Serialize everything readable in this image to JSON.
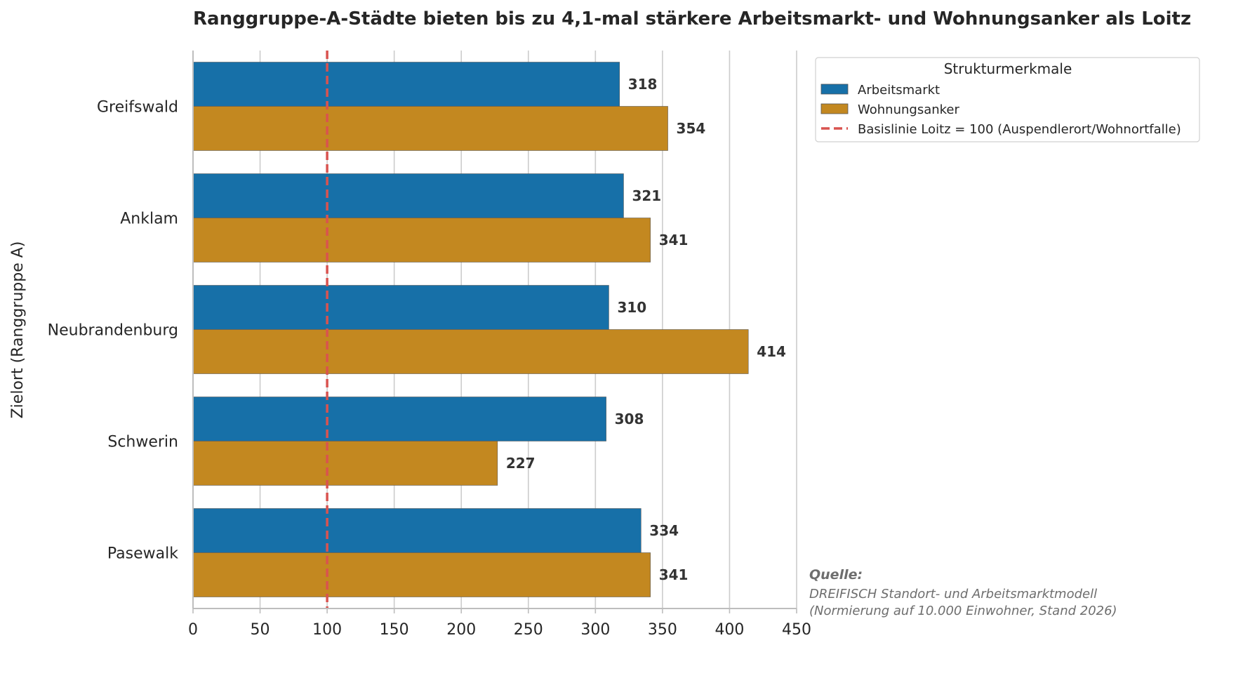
{
  "chart_data": {
    "type": "bar",
    "orientation": "horizontal",
    "title": "Ranggruppe-A-Städte bieten bis zu 4,1-mal stärkere Arbeitsmarkt- und Wohnungsanker als Loitz",
    "ylabel": "Zielort (Ranggruppe A)",
    "xlabel": "",
    "categories": [
      "Greifswald",
      "Anklam",
      "Neubrandenburg",
      "Schwerin",
      "Pasewalk"
    ],
    "series": [
      {
        "name": "Arbeitsmarkt",
        "color": "#1770a8",
        "values": [
          318,
          321,
          310,
          308,
          334
        ]
      },
      {
        "name": "Wohnungsanker",
        "color": "#c38820",
        "values": [
          354,
          341,
          414,
          227,
          341
        ]
      }
    ],
    "xlim": [
      0,
      450
    ],
    "xticks": [
      0,
      50,
      100,
      150,
      200,
      250,
      300,
      350,
      400,
      450
    ],
    "grid": "vertical",
    "reference_line": {
      "label": "Basislinie Loitz = 100 (Auspendlerort/Wohnortfalle)",
      "value": 100,
      "color": "#d9534f",
      "style": "dashed"
    },
    "legend": {
      "title": "Strukturmerkmale",
      "placement": "upper right, outside plot"
    },
    "source": {
      "heading": "Quelle:",
      "lines": [
        "DREIFISCH Standort- und Arbeitsmarktmodell",
        "(Normierung auf 10.000 Einwohner, Stand 2026)"
      ]
    }
  }
}
